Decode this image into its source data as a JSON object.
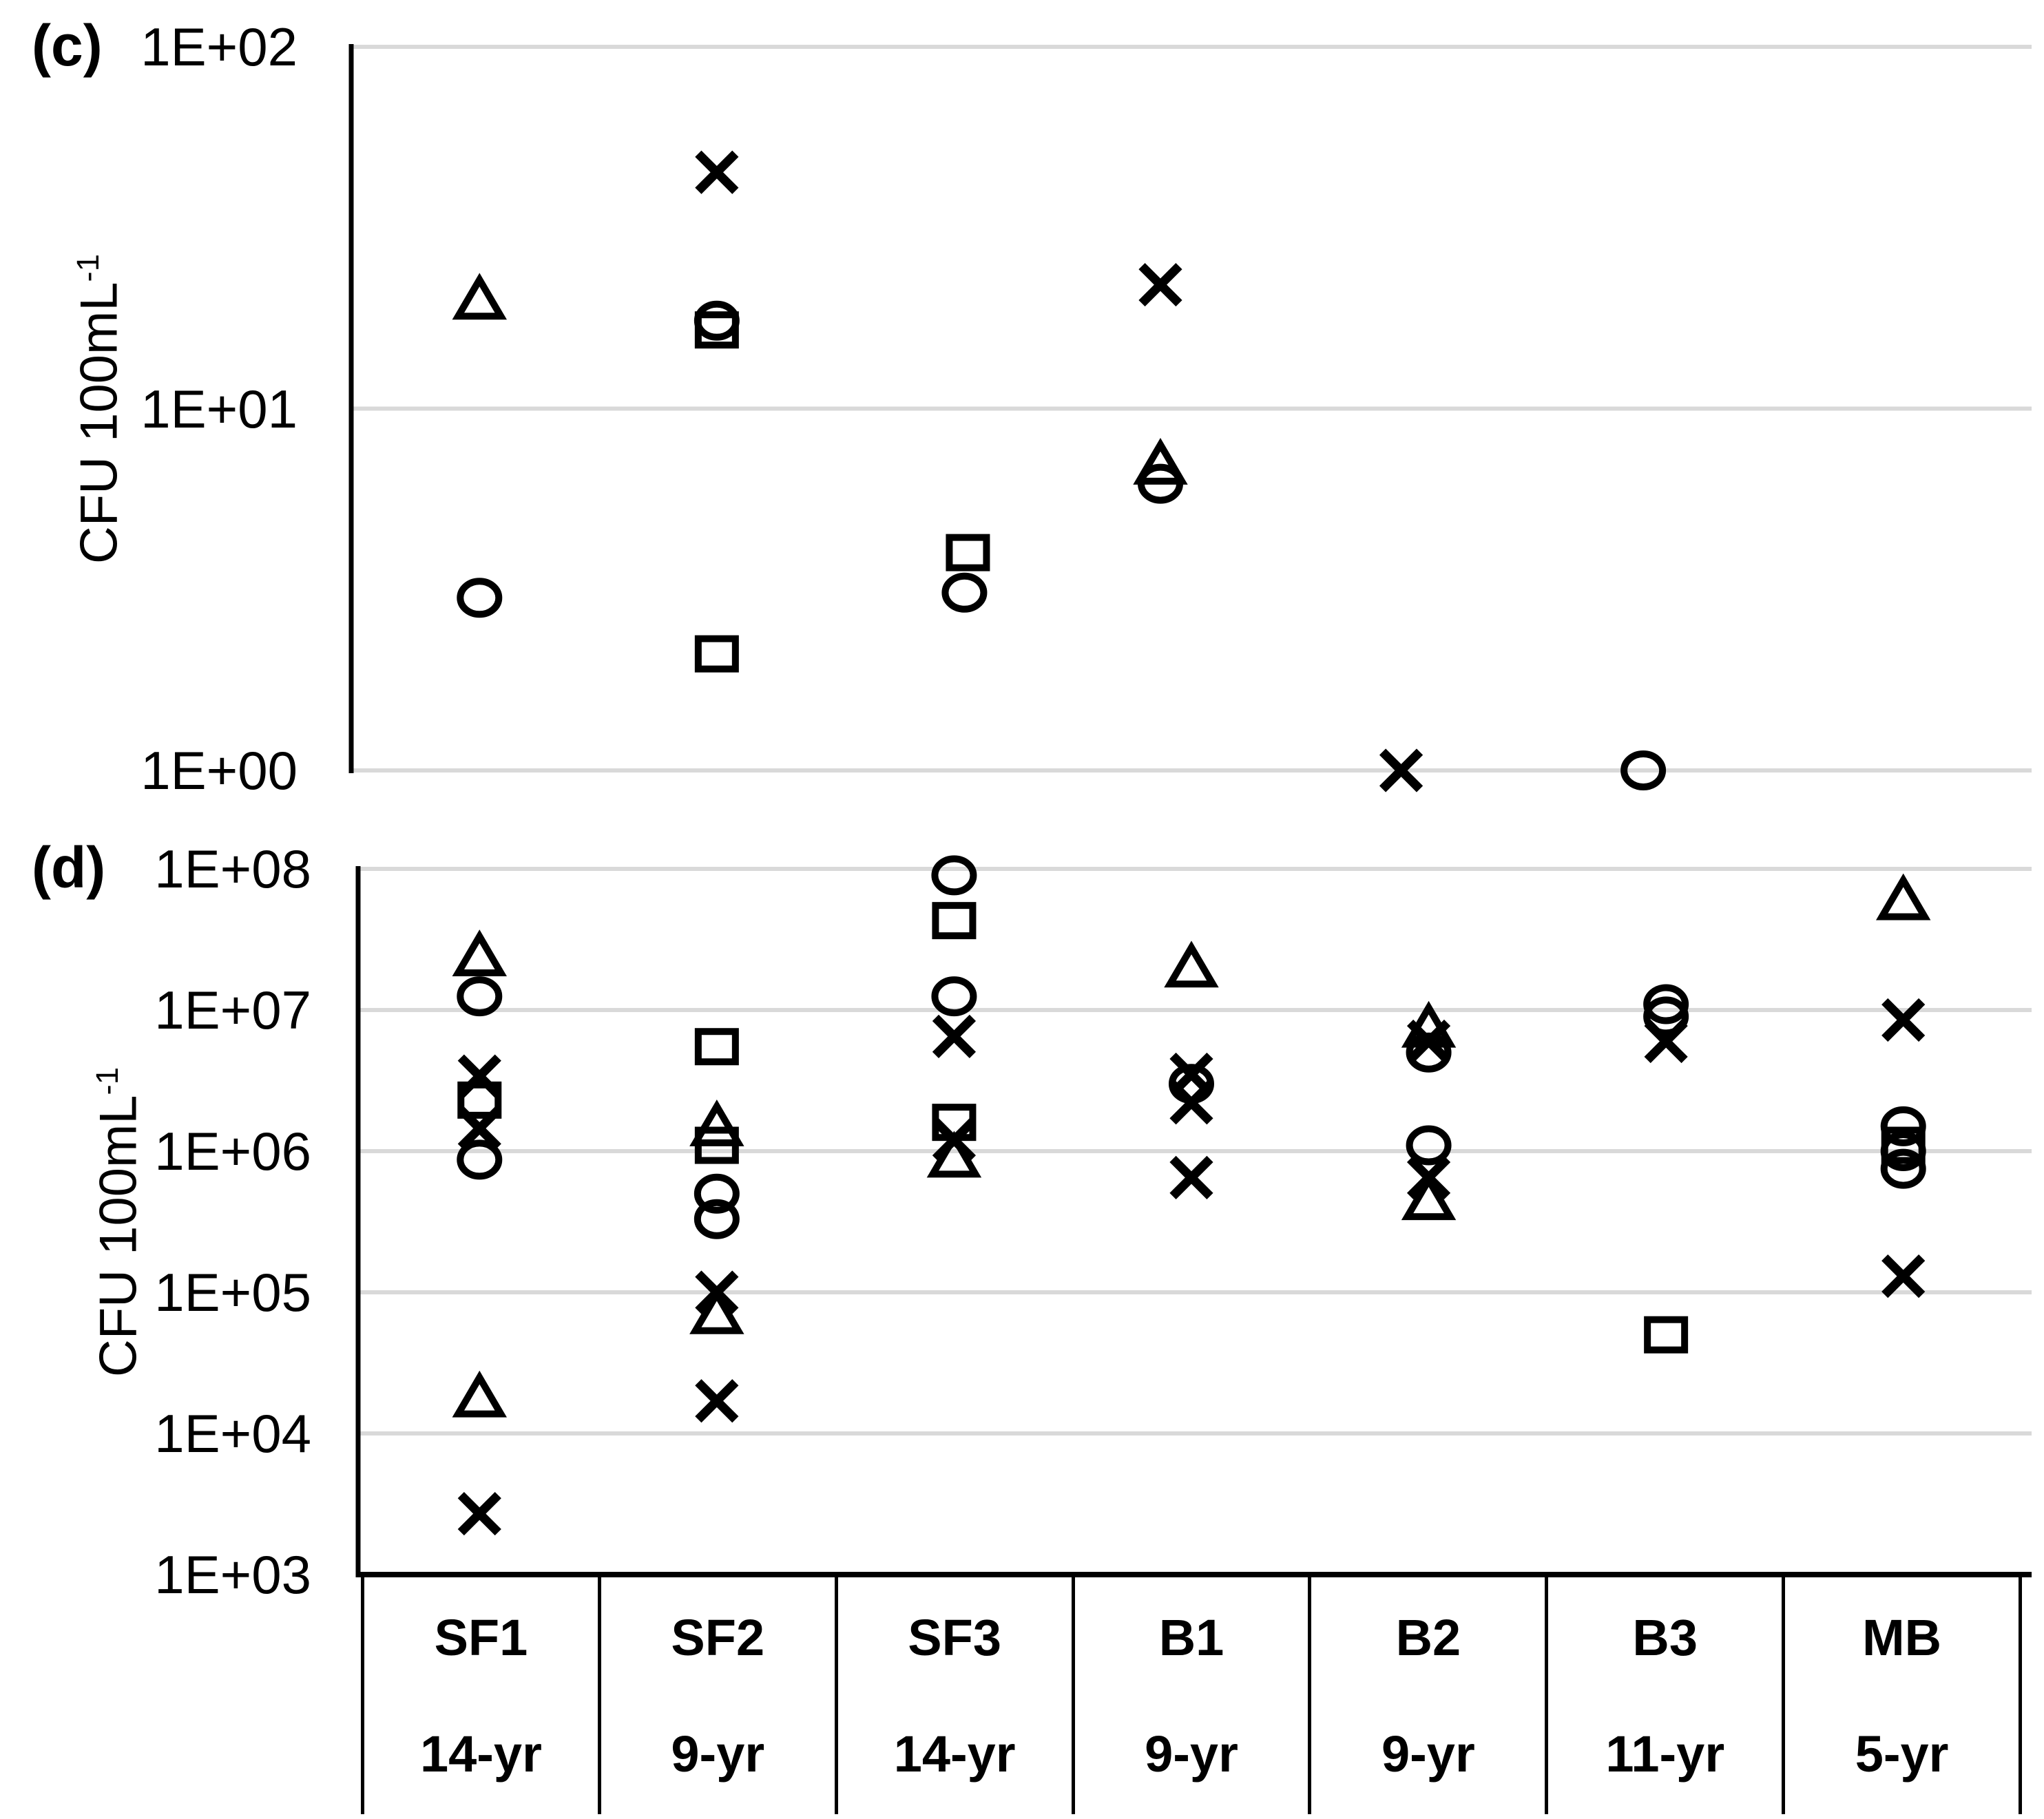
{
  "figure": {
    "panels": [
      {
        "label": "(c)",
        "ylabel_main": "CFU 100mL",
        "ylabel_sup": "-1",
        "yticks": [
          "1E+02",
          "1E+01",
          "1E+00"
        ]
      },
      {
        "label": "(d)",
        "ylabel_main": "CFU  100mL",
        "ylabel_sup": "-1",
        "yticks": [
          "1E+08",
          "1E+07",
          "1E+06",
          "1E+05",
          "1E+04",
          "1E+03"
        ]
      }
    ],
    "x_table": {
      "sites": [
        "SF1",
        "SF2",
        "SF3",
        "B1",
        "B2",
        "B3",
        "MB"
      ],
      "ages": [
        "14-yr",
        "9-yr",
        "14-yr",
        "9-yr",
        "9-yr",
        "11-yr",
        "5-yr"
      ]
    }
  },
  "colors": {
    "marker": "#000000",
    "gridline": "#d9d9d9",
    "axis": "#000000"
  },
  "chart_data": [
    {
      "id": "panel-c",
      "type": "scatter",
      "title": "(c)",
      "ylabel": "CFU 100mL-1",
      "yscale": "log",
      "ylim": [
        1,
        100
      ],
      "ytick_labels": [
        "1E+00",
        "1E+01",
        "1E+02"
      ],
      "grid": true,
      "legend_position": "none",
      "categories": [
        "SF1",
        "SF2",
        "SF3",
        "B1",
        "B2",
        "B3",
        "MB"
      ],
      "series": [
        {
          "name": "triangle-series",
          "marker": "triangle",
          "points": [
            {
              "category": "SF1",
              "value": 20
            },
            {
              "category": "B1",
              "value": 7.0,
              "dx": -45
            }
          ]
        },
        {
          "name": "x-series",
          "marker": "x",
          "points": [
            {
              "category": "SF2",
              "value": 45
            },
            {
              "category": "B1",
              "value": 22,
              "dx": -45
            },
            {
              "category": "B2",
              "value": 1.0,
              "dx": -40
            }
          ]
        },
        {
          "name": "square-series",
          "marker": "square",
          "points": [
            {
              "category": "SF2",
              "value": 16.5
            },
            {
              "category": "SF2",
              "value": 2.1
            },
            {
              "category": "SF3",
              "value": 4.0,
              "dx": 20
            }
          ]
        },
        {
          "name": "circle-series",
          "marker": "circle",
          "points": [
            {
              "category": "SF1",
              "value": 3.0
            },
            {
              "category": "SF2",
              "value": 17.5
            },
            {
              "category": "SF3",
              "value": 3.1,
              "dx": 15
            },
            {
              "category": "B1",
              "value": 6.2,
              "dx": -45
            },
            {
              "category": "B3",
              "value": 1.0,
              "dx": -33
            }
          ]
        }
      ]
    },
    {
      "id": "panel-d",
      "type": "scatter",
      "title": "(d)",
      "ylabel": "CFU 100mL-1",
      "yscale": "log",
      "ylim": [
        1000,
        100000000
      ],
      "ytick_labels": [
        "1E+03",
        "1E+04",
        "1E+05",
        "1E+06",
        "1E+07",
        "1E+08"
      ],
      "grid": true,
      "legend_position": "none",
      "categories": [
        "SF1",
        "SF2",
        "SF3",
        "B1",
        "B2",
        "B3",
        "MB"
      ],
      "series": [
        {
          "name": "triangle-series",
          "marker": "triangle",
          "points": [
            {
              "category": "SF1",
              "value": 24000000
            },
            {
              "category": "SF1",
              "value": 18000
            },
            {
              "category": "SF2",
              "value": 1500000
            },
            {
              "category": "SF2",
              "value": 70000
            },
            {
              "category": "SF3",
              "value": 900000
            },
            {
              "category": "B1",
              "value": 20000000
            },
            {
              "category": "B2",
              "value": 7500000
            },
            {
              "category": "B2",
              "value": 450000
            },
            {
              "category": "MB",
              "value": 60000000
            }
          ]
        },
        {
          "name": "x-series",
          "marker": "x",
          "points": [
            {
              "category": "SF1",
              "value": 3400000
            },
            {
              "category": "SF1",
              "value": 1450000
            },
            {
              "category": "SF1",
              "value": 2700
            },
            {
              "category": "SF2",
              "value": 100000
            },
            {
              "category": "SF2",
              "value": 17000
            },
            {
              "category": "SF3",
              "value": 6500000
            },
            {
              "category": "SF3",
              "value": 1200000
            },
            {
              "category": "B1",
              "value": 3500000
            },
            {
              "category": "B1",
              "value": 2200000
            },
            {
              "category": "B1",
              "value": 650000
            },
            {
              "category": "B2",
              "value": 6000000
            },
            {
              "category": "B2",
              "value": 650000
            },
            {
              "category": "B3",
              "value": 6000000
            },
            {
              "category": "MB",
              "value": 8500000
            },
            {
              "category": "MB",
              "value": 130000
            }
          ]
        },
        {
          "name": "square-series",
          "marker": "square",
          "points": [
            {
              "category": "SF1",
              "value": 2300000
            },
            {
              "category": "SF2",
              "value": 5500000
            },
            {
              "category": "SF2",
              "value": 1100000
            },
            {
              "category": "SF3",
              "value": 43000000
            },
            {
              "category": "SF3",
              "value": 1600000
            },
            {
              "category": "B3",
              "value": 50000
            },
            {
              "category": "MB",
              "value": 1100000
            }
          ]
        },
        {
          "name": "circle-series",
          "marker": "circle",
          "points": [
            {
              "category": "SF1",
              "value": 12500000
            },
            {
              "category": "SF1",
              "value": 870000
            },
            {
              "category": "SF2",
              "value": 500000
            },
            {
              "category": "SF2",
              "value": 330000
            },
            {
              "category": "SF3",
              "value": 90000000
            },
            {
              "category": "SF3",
              "value": 12500000
            },
            {
              "category": "B1",
              "value": 3000000
            },
            {
              "category": "B2",
              "value": 5000000
            },
            {
              "category": "B2",
              "value": 1100000
            },
            {
              "category": "B3",
              "value": 11000000
            },
            {
              "category": "B3",
              "value": 9000000
            },
            {
              "category": "MB",
              "value": 1500000
            },
            {
              "category": "MB",
              "value": 1000000
            },
            {
              "category": "MB",
              "value": 750000
            }
          ]
        }
      ]
    }
  ]
}
